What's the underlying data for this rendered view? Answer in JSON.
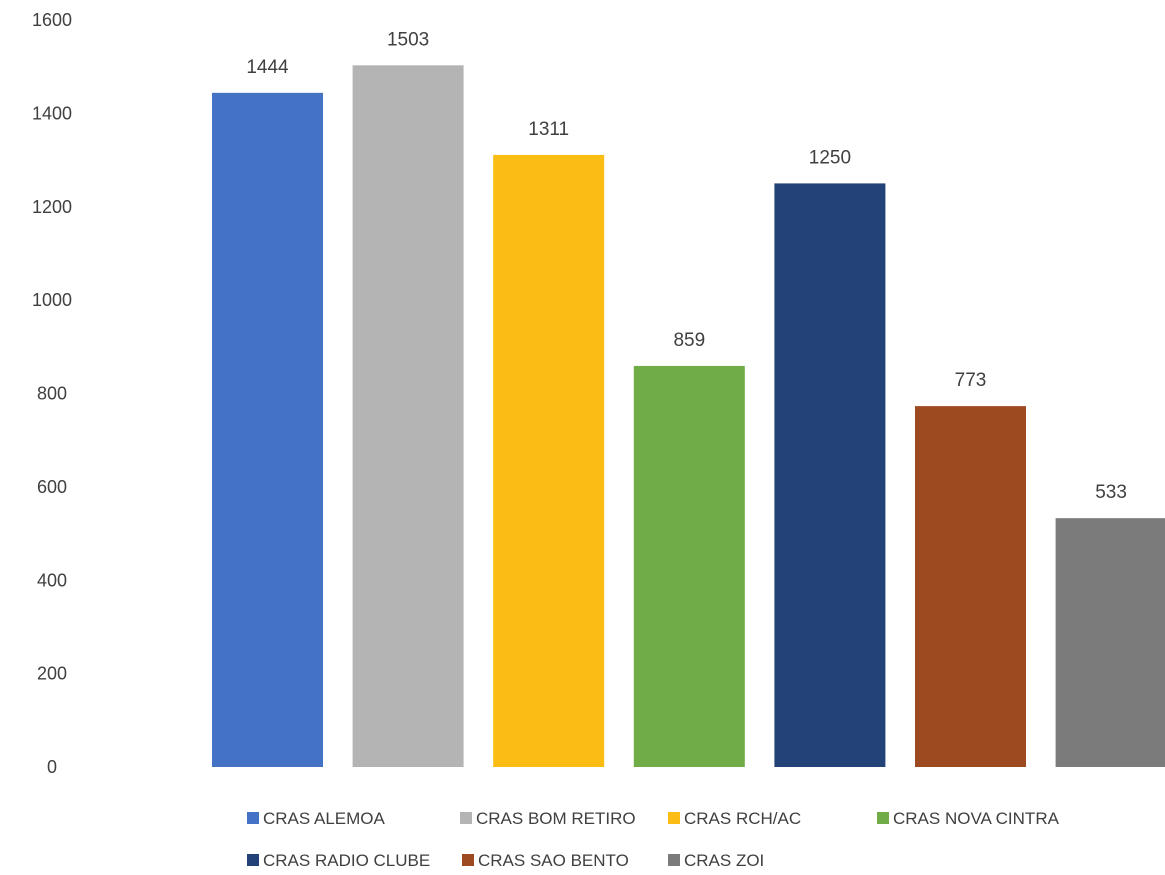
{
  "chart_data": {
    "type": "bar",
    "title": "",
    "xlabel": "",
    "ylabel": "",
    "ylim": [
      0,
      1600
    ],
    "yticks": [
      0,
      200,
      400,
      600,
      800,
      1000,
      1200,
      1400,
      1600
    ],
    "grid": false,
    "legend_position": "bottom",
    "series": [
      {
        "name": "CRAS ALEMOA",
        "value": 1444,
        "color": "#4472C4"
      },
      {
        "name": "CRAS BOM RETIRO",
        "value": 1503,
        "color": "#B4B4B4"
      },
      {
        "name": "CRAS RCH/AC",
        "value": 1311,
        "color": "#FBBD14"
      },
      {
        "name": "CRAS NOVA CINTRA",
        "value": 859,
        "color": "#70AD47"
      },
      {
        "name": "CRAS RADIO CLUBE",
        "value": 1250,
        "color": "#234277"
      },
      {
        "name": "CRAS SAO BENTO",
        "value": 773,
        "color": "#9E4A21"
      },
      {
        "name": "CRAS ZOI",
        "value": 533,
        "color": "#7B7B7B"
      }
    ]
  }
}
